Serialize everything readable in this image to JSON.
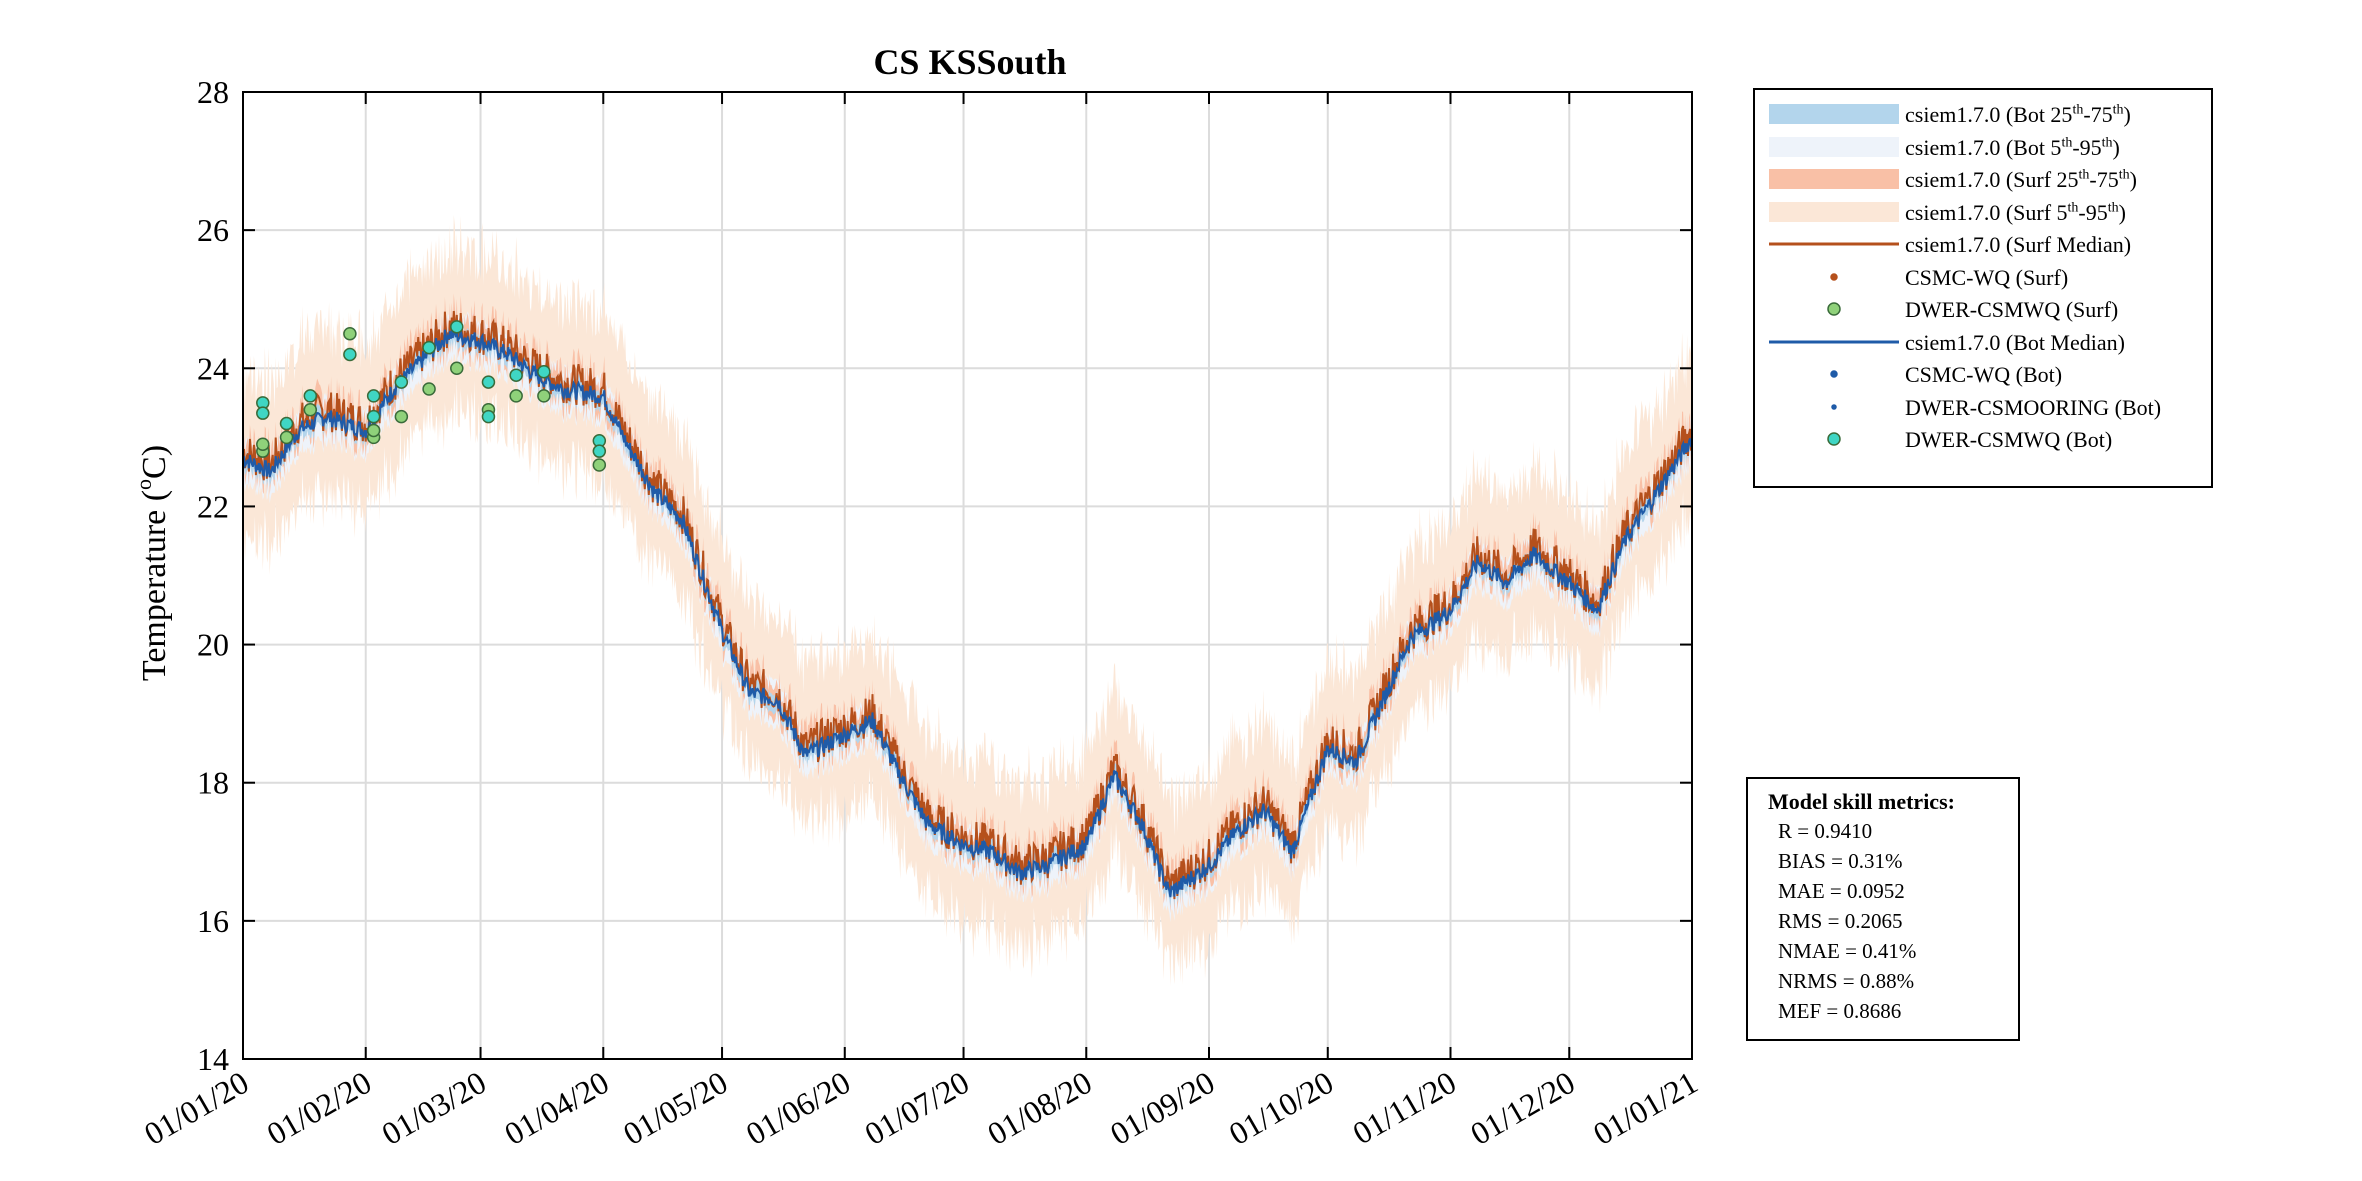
{
  "chart_data": {
    "type": "line",
    "title": "CS KSSouth",
    "ylabel": "Temperature (°C)",
    "ylim": [
      14,
      28
    ],
    "yticks": [
      14,
      16,
      18,
      20,
      22,
      24,
      26,
      28
    ],
    "xlim": [
      "2020-01-01",
      "2021-01-01"
    ],
    "xticks": [
      "2020-01-01",
      "2020-02-01",
      "2020-03-01",
      "2020-04-01",
      "2020-05-01",
      "2020-06-01",
      "2020-07-01",
      "2020-08-01",
      "2020-09-01",
      "2020-10-01",
      "2020-11-01",
      "2020-12-01",
      "2021-01-01"
    ],
    "xtick_labels": [
      "01/01/20",
      "01/02/20",
      "01/03/20",
      "01/04/20",
      "01/05/20",
      "01/06/20",
      "01/07/20",
      "01/08/20",
      "01/09/20",
      "01/10/20",
      "01/11/20",
      "01/12/20",
      "01/01/21"
    ],
    "grid": true,
    "median_key_dates": [
      "2020-01-01",
      "2020-01-08",
      "2020-01-15",
      "2020-01-22",
      "2020-02-01",
      "2020-02-08",
      "2020-02-15",
      "2020-02-22",
      "2020-03-01",
      "2020-03-08",
      "2020-03-15",
      "2020-03-22",
      "2020-04-01",
      "2020-04-07",
      "2020-04-14",
      "2020-04-21",
      "2020-05-01",
      "2020-05-08",
      "2020-05-15",
      "2020-05-22",
      "2020-06-01",
      "2020-06-08",
      "2020-06-15",
      "2020-06-22",
      "2020-07-01",
      "2020-07-08",
      "2020-07-15",
      "2020-07-22",
      "2020-08-01",
      "2020-08-08",
      "2020-08-15",
      "2020-08-22",
      "2020-09-01",
      "2020-09-08",
      "2020-09-15",
      "2020-09-22",
      "2020-10-01",
      "2020-10-08",
      "2020-10-15",
      "2020-10-22",
      "2020-11-01",
      "2020-11-08",
      "2020-11-15",
      "2020-11-22",
      "2020-12-01",
      "2020-12-08",
      "2020-12-15",
      "2020-12-22",
      "2021-01-01"
    ],
    "series": [
      {
        "name": "csiem1.7.0 (Surf Median)",
        "color": "#b5501c",
        "values": [
          22.8,
          22.6,
          23.2,
          23.4,
          23.2,
          23.8,
          24.2,
          24.6,
          24.5,
          24.3,
          24.0,
          23.8,
          23.7,
          23.0,
          22.3,
          21.9,
          20.3,
          19.4,
          19.3,
          18.5,
          18.8,
          19.0,
          18.2,
          17.5,
          17.2,
          17.1,
          16.8,
          16.9,
          17.2,
          18.2,
          17.5,
          16.5,
          16.9,
          17.4,
          17.7,
          17.1,
          18.6,
          18.4,
          19.3,
          20.2,
          20.6,
          21.3,
          21.0,
          21.4,
          21.0,
          20.6,
          21.6,
          22.2,
          23.1
        ]
      },
      {
        "name": "csiem1.7.0 (Bot Median)",
        "color": "#1f5ba8",
        "values": [
          22.7,
          22.5,
          23.1,
          23.3,
          23.1,
          23.7,
          24.1,
          24.5,
          24.4,
          24.2,
          23.9,
          23.7,
          23.6,
          22.9,
          22.2,
          21.8,
          20.2,
          19.3,
          19.2,
          18.4,
          18.7,
          18.9,
          18.1,
          17.4,
          17.1,
          17.0,
          16.7,
          16.8,
          17.1,
          18.1,
          17.4,
          16.4,
          16.8,
          17.3,
          17.6,
          17.0,
          18.5,
          18.3,
          19.2,
          20.1,
          20.5,
          21.2,
          20.9,
          21.3,
          20.9,
          20.5,
          21.5,
          22.1,
          23.0
        ]
      }
    ],
    "bands": [
      {
        "name": "csiem1.7.0 (Bot 25th-75th)",
        "color": "#b3d5ec",
        "halfwidth": 0.12
      },
      {
        "name": "csiem1.7.0 (Bot 5th-95th)",
        "color": "#eef3fa",
        "halfwidth": 0.3
      },
      {
        "name": "csiem1.7.0 (Surf 25th-75th)",
        "color": "#f9c0a6",
        "halfwidth": 0.2
      },
      {
        "name": "csiem1.7.0 (Surf 5th-95th)",
        "color": "#fbe7d7",
        "halfwidth": 0.9
      }
    ],
    "observations": [
      {
        "name": "DWER-CSMWQ (Surf)",
        "color": "#8fd17a",
        "points": [
          [
            "2020-01-06",
            22.8
          ],
          [
            "2020-01-12",
            23.0
          ],
          [
            "2020-01-18",
            23.4
          ],
          [
            "2020-01-28",
            24.5
          ],
          [
            "2020-02-03",
            23.0
          ],
          [
            "2020-02-10",
            23.3
          ],
          [
            "2020-02-17",
            23.7
          ],
          [
            "2020-02-24",
            24.0
          ],
          [
            "2020-03-03",
            23.4
          ],
          [
            "2020-03-10",
            23.6
          ],
          [
            "2020-03-17",
            23.6
          ],
          [
            "2020-03-31",
            22.6
          ],
          [
            "2020-01-06",
            22.9
          ],
          [
            "2020-02-03",
            23.1
          ]
        ]
      },
      {
        "name": "DWER-CSMWQ (Bot)",
        "color": "#3fd6c4",
        "points": [
          [
            "2020-01-06",
            23.5
          ],
          [
            "2020-01-06",
            23.35
          ],
          [
            "2020-01-12",
            23.2
          ],
          [
            "2020-01-18",
            23.6
          ],
          [
            "2020-01-28",
            24.2
          ],
          [
            "2020-02-03",
            23.6
          ],
          [
            "2020-02-03",
            23.3
          ],
          [
            "2020-02-10",
            23.8
          ],
          [
            "2020-02-17",
            24.3
          ],
          [
            "2020-02-24",
            24.6
          ],
          [
            "2020-03-03",
            23.8
          ],
          [
            "2020-03-03",
            23.3
          ],
          [
            "2020-03-10",
            23.9
          ],
          [
            "2020-03-17",
            23.95
          ],
          [
            "2020-03-31",
            22.95
          ],
          [
            "2020-03-31",
            22.8
          ]
        ]
      }
    ]
  },
  "legend": {
    "items": [
      {
        "pre": "csiem1.7.0 (Bot 25",
        "sup1": "th",
        "mid": "-75",
        "sup2": "th",
        "post": ")"
      },
      {
        "pre": "csiem1.7.0 (Bot 5",
        "sup1": "th",
        "mid": "-95",
        "sup2": "th",
        "post": ")"
      },
      {
        "pre": "csiem1.7.0 (Surf 25",
        "sup1": "th",
        "mid": "-75",
        "sup2": "th",
        "post": ")"
      },
      {
        "pre": "csiem1.7.0 (Surf 5",
        "sup1": "th",
        "mid": "-95",
        "sup2": "th",
        "post": ")"
      },
      {
        "pre": "csiem1.7.0 (Surf Median)"
      },
      {
        "pre": "CSMC-WQ (Surf)"
      },
      {
        "pre": "DWER-CSMWQ (Surf)"
      },
      {
        "pre": "csiem1.7.0 (Bot Median)"
      },
      {
        "pre": "CSMC-WQ (Bot)"
      },
      {
        "pre": "DWER-CSMOORING (Bot)"
      },
      {
        "pre": "DWER-CSMWQ (Bot)"
      }
    ]
  },
  "skill": {
    "title": "Model skill metrics:",
    "lines": [
      "R     = 0.9410",
      "BIAS = 0.31%",
      "MAE  = 0.0952",
      "RMS  = 0.2065",
      "NMAE = 0.41%",
      "NRMS = 0.88%",
      "MEF  = 0.8686"
    ]
  }
}
